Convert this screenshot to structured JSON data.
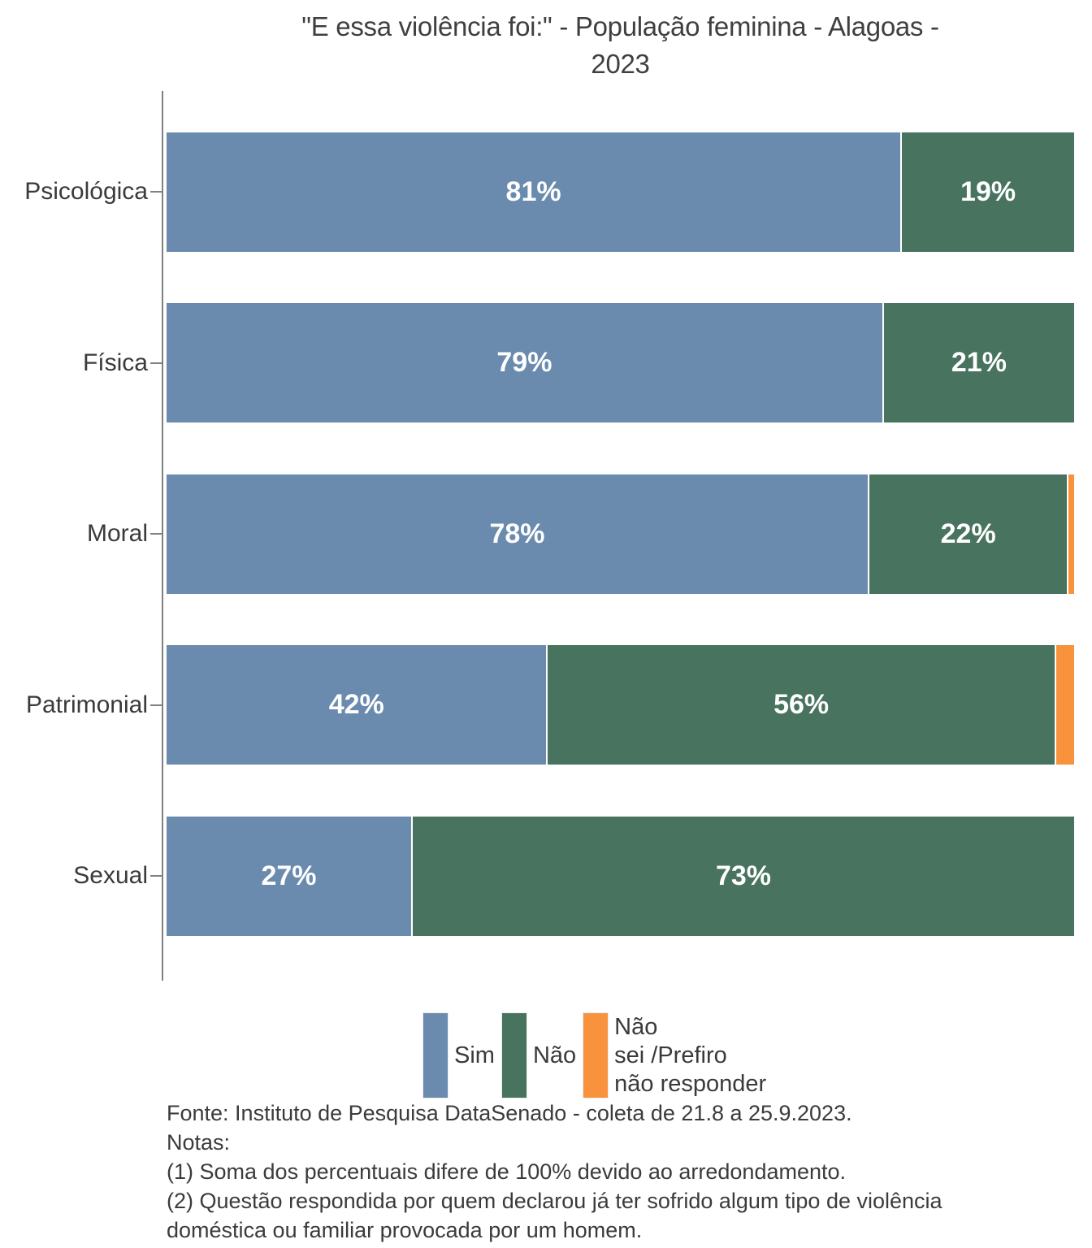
{
  "title": {
    "lines": [
      "\"E essa violência foi:\" - População feminina - Alagoas -",
      "2023"
    ]
  },
  "chart_data": {
    "type": "bar",
    "orientation": "horizontal",
    "stacked": true,
    "title": "\"E essa violência foi:\" - População feminina - Alagoas - 2023",
    "categories": [
      "Psicológica",
      "Física",
      "Moral",
      "Patrimonial",
      "Sexual"
    ],
    "series": [
      {
        "key": "sim",
        "name": "Sim",
        "color": "#6a8bae",
        "values": [
          81,
          79,
          78,
          42,
          27
        ],
        "labels": [
          "81%",
          "79%",
          "78%",
          "42%",
          "27%"
        ]
      },
      {
        "key": "nao",
        "name": "Não",
        "color": "#47735f",
        "values": [
          19,
          21,
          22,
          56,
          73
        ],
        "labels": [
          "19%",
          "21%",
          "22%",
          "56%",
          "73%"
        ]
      },
      {
        "key": "nao-sei-prefiro-nao-responder",
        "name": "Não sei /Prefiro não responder",
        "color": "#f8923c",
        "values": [
          0,
          0,
          0.6,
          2,
          0
        ],
        "labels": [
          "",
          "",
          "",
          "",
          ""
        ]
      }
    ],
    "xlim": [
      0,
      100
    ],
    "value_unit": "%",
    "grid": false,
    "legend_position": "bottom",
    "axis_color": "#808080",
    "bar_label_color": "#ffffff"
  },
  "legend": {
    "items": [
      {
        "key": "sim",
        "color": "#6a8bae",
        "label_lines": [
          "Sim"
        ]
      },
      {
        "key": "nao",
        "color": "#47735f",
        "label_lines": [
          "Não"
        ]
      },
      {
        "key": "nao-sei-prefiro-nao-responder",
        "color": "#f8923c",
        "label_lines": [
          "Não",
          "sei /Prefiro",
          "não responder"
        ]
      }
    ]
  },
  "footer": {
    "lines": [
      "Fonte: Instituto de Pesquisa DataSenado - coleta de 21.8 a 25.9.2023.",
      "Notas:",
      "(1) Soma dos percentuais difere de 100% devido ao arredondamento.",
      "(2) Questão respondida por quem declarou já ter sofrido algum tipo de violência",
      "doméstica ou familiar provocada por um homem."
    ]
  }
}
